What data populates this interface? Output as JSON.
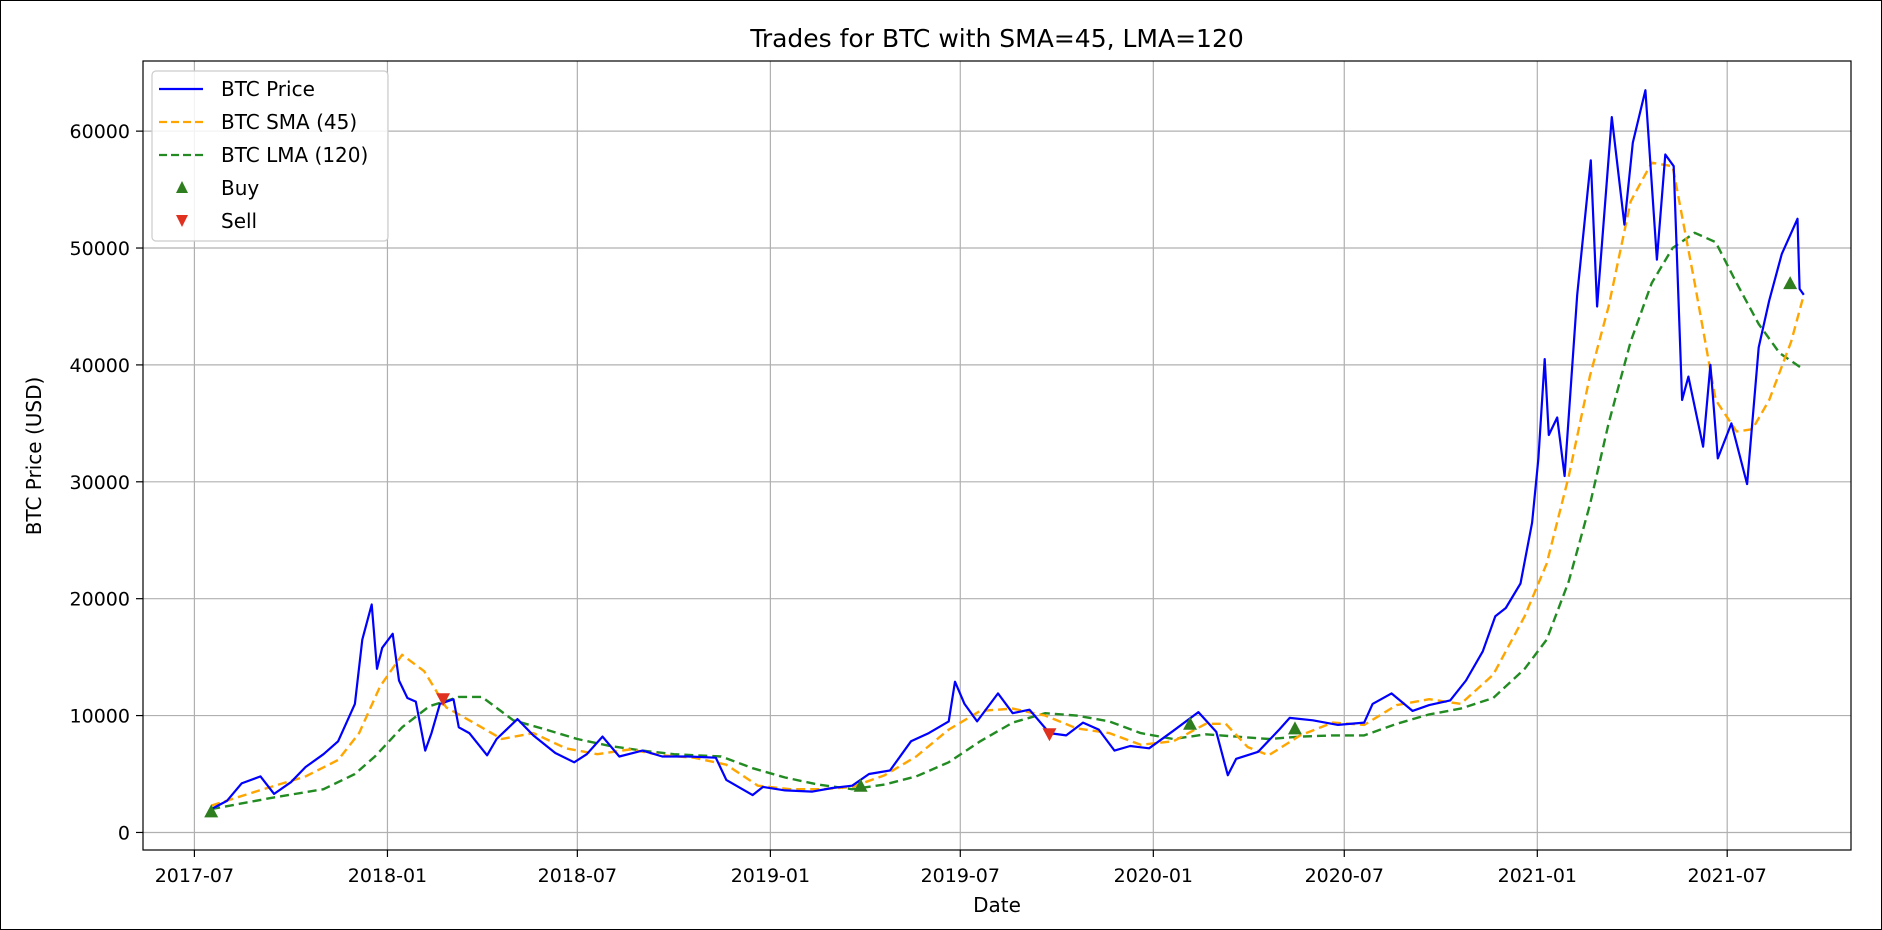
{
  "chart_data": {
    "type": "line",
    "title": "Trades for BTC with SMA=45, LMA=120",
    "xlabel": "Date",
    "ylabel": "BTC Price (USD)",
    "xlim": [
      "2017-05-13",
      "2021-10-27"
    ],
    "ylim": [
      -1500,
      66000
    ],
    "x_ticks": [
      "2017-07",
      "2018-01",
      "2018-07",
      "2019-01",
      "2019-07",
      "2020-01",
      "2020-07",
      "2021-01",
      "2021-07"
    ],
    "y_ticks": [
      0,
      10000,
      20000,
      30000,
      40000,
      50000,
      60000
    ],
    "grid": true,
    "legend_position": "top-left",
    "legend": [
      "BTC Price",
      "BTC SMA (45)",
      "BTC LMA (120)",
      "Buy",
      "Sell"
    ],
    "series": [
      {
        "name": "BTC Price",
        "style": "solid",
        "color": "#0000ff",
        "points": [
          [
            "2017-07-17",
            2000
          ],
          [
            "2017-08-01",
            2700
          ],
          [
            "2017-08-15",
            4200
          ],
          [
            "2017-09-02",
            4800
          ],
          [
            "2017-09-15",
            3300
          ],
          [
            "2017-10-01",
            4300
          ],
          [
            "2017-10-15",
            5600
          ],
          [
            "2017-11-01",
            6700
          ],
          [
            "2017-11-15",
            7800
          ],
          [
            "2017-12-01",
            11000
          ],
          [
            "2017-12-08",
            16500
          ],
          [
            "2017-12-17",
            19500
          ],
          [
            "2017-12-22",
            14000
          ],
          [
            "2017-12-27",
            15800
          ],
          [
            "2018-01-06",
            17000
          ],
          [
            "2018-01-12",
            13000
          ],
          [
            "2018-01-20",
            11500
          ],
          [
            "2018-01-28",
            11200
          ],
          [
            "2018-02-06",
            7000
          ],
          [
            "2018-02-12",
            8500
          ],
          [
            "2018-02-20",
            11000
          ],
          [
            "2018-03-05",
            11400
          ],
          [
            "2018-03-10",
            9000
          ],
          [
            "2018-03-20",
            8500
          ],
          [
            "2018-04-06",
            6600
          ],
          [
            "2018-04-15",
            8000
          ],
          [
            "2018-05-05",
            9700
          ],
          [
            "2018-05-20",
            8300
          ],
          [
            "2018-06-10",
            6800
          ],
          [
            "2018-06-28",
            6000
          ],
          [
            "2018-07-10",
            6700
          ],
          [
            "2018-07-25",
            8200
          ],
          [
            "2018-08-10",
            6500
          ],
          [
            "2018-09-01",
            7000
          ],
          [
            "2018-09-20",
            6500
          ],
          [
            "2018-10-15",
            6500
          ],
          [
            "2018-11-10",
            6400
          ],
          [
            "2018-11-20",
            4500
          ],
          [
            "2018-12-15",
            3200
          ],
          [
            "2018-12-25",
            3900
          ],
          [
            "2019-01-15",
            3600
          ],
          [
            "2019-02-10",
            3500
          ],
          [
            "2019-03-01",
            3800
          ],
          [
            "2019-03-20",
            4000
          ],
          [
            "2019-04-05",
            5000
          ],
          [
            "2019-04-25",
            5300
          ],
          [
            "2019-05-15",
            7800
          ],
          [
            "2019-06-01",
            8500
          ],
          [
            "2019-06-20",
            9500
          ],
          [
            "2019-06-26",
            12900
          ],
          [
            "2019-07-05",
            11000
          ],
          [
            "2019-07-17",
            9500
          ],
          [
            "2019-08-06",
            11900
          ],
          [
            "2019-08-20",
            10200
          ],
          [
            "2019-09-05",
            10500
          ],
          [
            "2019-09-24",
            8500
          ],
          [
            "2019-10-10",
            8300
          ],
          [
            "2019-10-26",
            9400
          ],
          [
            "2019-11-10",
            8800
          ],
          [
            "2019-11-25",
            7000
          ],
          [
            "2019-12-10",
            7400
          ],
          [
            "2019-12-28",
            7200
          ],
          [
            "2020-01-20",
            8700
          ],
          [
            "2020-02-13",
            10300
          ],
          [
            "2020-03-01",
            8600
          ],
          [
            "2020-03-12",
            4900
          ],
          [
            "2020-03-20",
            6300
          ],
          [
            "2020-04-10",
            6900
          ],
          [
            "2020-04-30",
            8800
          ],
          [
            "2020-05-10",
            9800
          ],
          [
            "2020-06-01",
            9600
          ],
          [
            "2020-06-25",
            9200
          ],
          [
            "2020-07-20",
            9400
          ],
          [
            "2020-07-28",
            11000
          ],
          [
            "2020-08-15",
            11900
          ],
          [
            "2020-09-04",
            10400
          ],
          [
            "2020-09-20",
            10900
          ],
          [
            "2020-10-10",
            11300
          ],
          [
            "2020-10-25",
            13000
          ],
          [
            "2020-11-10",
            15500
          ],
          [
            "2020-11-22",
            18500
          ],
          [
            "2020-12-02",
            19200
          ],
          [
            "2020-12-16",
            21300
          ],
          [
            "2020-12-27",
            26500
          ],
          [
            "2021-01-02",
            32000
          ],
          [
            "2021-01-08",
            40500
          ],
          [
            "2021-01-12",
            34000
          ],
          [
            "2021-01-20",
            35500
          ],
          [
            "2021-01-27",
            30500
          ],
          [
            "2021-02-08",
            46000
          ],
          [
            "2021-02-21",
            57500
          ],
          [
            "2021-02-27",
            45000
          ],
          [
            "2021-03-13",
            61200
          ],
          [
            "2021-03-25",
            52000
          ],
          [
            "2021-04-02",
            59000
          ],
          [
            "2021-04-14",
            63500
          ],
          [
            "2021-04-25",
            49000
          ],
          [
            "2021-05-03",
            58000
          ],
          [
            "2021-05-11",
            57000
          ],
          [
            "2021-05-19",
            37000
          ],
          [
            "2021-05-25",
            39000
          ],
          [
            "2021-06-08",
            33000
          ],
          [
            "2021-06-15",
            40000
          ],
          [
            "2021-06-22",
            32000
          ],
          [
            "2021-07-05",
            35000
          ],
          [
            "2021-07-20",
            29800
          ],
          [
            "2021-07-31",
            41500
          ],
          [
            "2021-08-10",
            45500
          ],
          [
            "2021-08-22",
            49500
          ],
          [
            "2021-09-06",
            52500
          ],
          [
            "2021-09-08",
            46500
          ],
          [
            "2021-09-12",
            46000
          ]
        ]
      },
      {
        "name": "BTC SMA (45)",
        "style": "dashed",
        "color": "#ffa500",
        "points": [
          [
            "2017-07-17",
            2300
          ],
          [
            "2017-09-01",
            3600
          ],
          [
            "2017-10-15",
            4800
          ],
          [
            "2017-11-15",
            6200
          ],
          [
            "2017-12-05",
            8500
          ],
          [
            "2017-12-25",
            12500
          ],
          [
            "2018-01-15",
            15200
          ],
          [
            "2018-02-05",
            13800
          ],
          [
            "2018-02-26",
            10700
          ],
          [
            "2018-03-20",
            9600
          ],
          [
            "2018-04-20",
            8000
          ],
          [
            "2018-05-20",
            8500
          ],
          [
            "2018-06-20",
            7200
          ],
          [
            "2018-07-20",
            6700
          ],
          [
            "2018-08-20",
            7100
          ],
          [
            "2018-09-20",
            6600
          ],
          [
            "2018-10-20",
            6400
          ],
          [
            "2018-11-20",
            5800
          ],
          [
            "2018-12-20",
            4000
          ],
          [
            "2019-01-20",
            3700
          ],
          [
            "2019-02-20",
            3700
          ],
          [
            "2019-03-20",
            3900
          ],
          [
            "2019-04-20",
            4900
          ],
          [
            "2019-05-20",
            6500
          ],
          [
            "2019-06-20",
            8800
          ],
          [
            "2019-07-20",
            10400
          ],
          [
            "2019-08-20",
            10600
          ],
          [
            "2019-09-20",
            10000
          ],
          [
            "2019-10-20",
            8900
          ],
          [
            "2019-11-20",
            8500
          ],
          [
            "2019-12-20",
            7500
          ],
          [
            "2020-01-20",
            7800
          ],
          [
            "2020-02-20",
            9300
          ],
          [
            "2020-03-10",
            9300
          ],
          [
            "2020-03-31",
            7300
          ],
          [
            "2020-04-20",
            6600
          ],
          [
            "2020-05-20",
            8300
          ],
          [
            "2020-06-20",
            9400
          ],
          [
            "2020-07-20",
            9200
          ],
          [
            "2020-08-20",
            10900
          ],
          [
            "2020-09-20",
            11400
          ],
          [
            "2020-10-20",
            11000
          ],
          [
            "2020-11-20",
            13500
          ],
          [
            "2020-12-20",
            18500
          ],
          [
            "2021-01-10",
            23000
          ],
          [
            "2021-01-31",
            30500
          ],
          [
            "2021-02-20",
            39000
          ],
          [
            "2021-03-10",
            45000
          ],
          [
            "2021-03-31",
            54000
          ],
          [
            "2021-04-20",
            57300
          ],
          [
            "2021-05-10",
            57000
          ],
          [
            "2021-05-31",
            47000
          ],
          [
            "2021-06-20",
            37000
          ],
          [
            "2021-07-10",
            34300
          ],
          [
            "2021-07-25",
            34500
          ],
          [
            "2021-08-10",
            37000
          ],
          [
            "2021-08-31",
            42000
          ],
          [
            "2021-09-12",
            46000
          ]
        ]
      },
      {
        "name": "BTC LMA (120)",
        "style": "dashed",
        "color": "#228b22",
        "points": [
          [
            "2017-07-17",
            2000
          ],
          [
            "2017-09-15",
            3000
          ],
          [
            "2017-11-01",
            3700
          ],
          [
            "2017-12-01",
            5000
          ],
          [
            "2017-12-20",
            6500
          ],
          [
            "2018-01-15",
            9000
          ],
          [
            "2018-02-10",
            10800
          ],
          [
            "2018-03-10",
            11600
          ],
          [
            "2018-04-01",
            11600
          ],
          [
            "2018-05-01",
            9600
          ],
          [
            "2018-06-01",
            8800
          ],
          [
            "2018-07-01",
            8000
          ],
          [
            "2018-08-01",
            7400
          ],
          [
            "2018-09-01",
            7000
          ],
          [
            "2018-10-01",
            6700
          ],
          [
            "2018-11-15",
            6500
          ],
          [
            "2018-12-15",
            5500
          ],
          [
            "2019-01-15",
            4700
          ],
          [
            "2019-02-15",
            4100
          ],
          [
            "2019-03-20",
            3700
          ],
          [
            "2019-04-20",
            4100
          ],
          [
            "2019-05-20",
            4800
          ],
          [
            "2019-06-20",
            6000
          ],
          [
            "2019-07-20",
            7800
          ],
          [
            "2019-08-20",
            9400
          ],
          [
            "2019-09-20",
            10200
          ],
          [
            "2019-10-20",
            10000
          ],
          [
            "2019-11-20",
            9500
          ],
          [
            "2019-12-20",
            8500
          ],
          [
            "2020-01-20",
            8000
          ],
          [
            "2020-02-20",
            8400
          ],
          [
            "2020-03-20",
            8200
          ],
          [
            "2020-04-20",
            8000
          ],
          [
            "2020-05-20",
            8200
          ],
          [
            "2020-06-20",
            8300
          ],
          [
            "2020-07-20",
            8300
          ],
          [
            "2020-08-20",
            9300
          ],
          [
            "2020-09-20",
            10100
          ],
          [
            "2020-10-20",
            10600
          ],
          [
            "2020-11-20",
            11500
          ],
          [
            "2020-12-20",
            14000
          ],
          [
            "2021-01-10",
            16500
          ],
          [
            "2021-01-31",
            21500
          ],
          [
            "2021-02-20",
            28000
          ],
          [
            "2021-03-10",
            35000
          ],
          [
            "2021-03-31",
            42000
          ],
          [
            "2021-04-20",
            47000
          ],
          [
            "2021-05-10",
            50000
          ],
          [
            "2021-05-31",
            51300
          ],
          [
            "2021-06-20",
            50500
          ],
          [
            "2021-07-10",
            47000
          ],
          [
            "2021-07-31",
            43500
          ],
          [
            "2021-08-20",
            41000
          ],
          [
            "2021-09-12",
            39600
          ]
        ]
      }
    ],
    "buy_points": [
      [
        "2017-07-17",
        1800
      ],
      [
        "2019-03-28",
        4000
      ],
      [
        "2020-02-05",
        9300
      ],
      [
        "2020-05-15",
        8900
      ],
      [
        "2021-08-30",
        47000
      ]
    ],
    "sell_points": [
      [
        "2018-02-23",
        11400
      ],
      [
        "2019-09-24",
        8400
      ]
    ],
    "buy_color": "#2e7d1e",
    "sell_color": "#e03020"
  }
}
